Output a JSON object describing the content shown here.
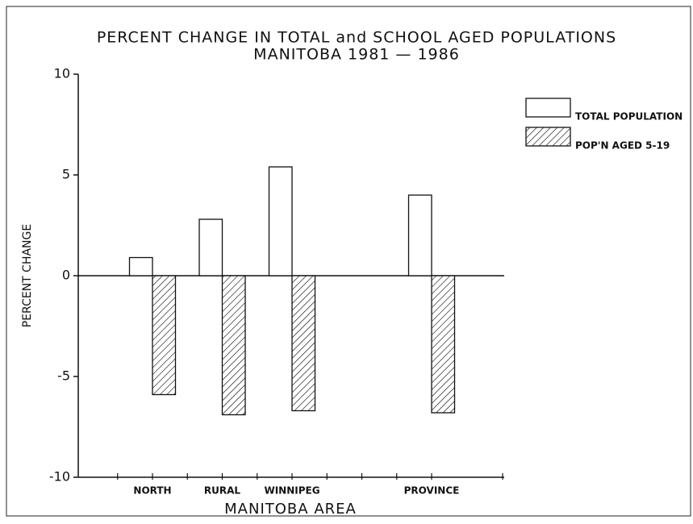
{
  "chart_data": {
    "type": "bar",
    "title": "PERCENT CHANGE IN TOTAL and SCHOOL AGED POPULATIONS",
    "subtitle": "MANITOBA  1981 — 1986",
    "x_label": "MANITOBA AREA",
    "y_label": "PERCENT CHANGE",
    "categories": [
      "NORTH",
      "RURAL",
      "WINNIPEG",
      null,
      "PROVINCE"
    ],
    "series": [
      {
        "name": "TOTAL POPULATION",
        "color": "#ffffff",
        "hatch": false,
        "values": [
          0.9,
          2.8,
          5.4,
          null,
          4.0
        ]
      },
      {
        "name": "POP'N AGED 5-19",
        "color": "#000000",
        "hatch": true,
        "values": [
          -5.9,
          -6.9,
          -6.7,
          null,
          -6.8
        ]
      }
    ],
    "ylim": [
      -10,
      10
    ],
    "yticks": [
      -10,
      -5,
      0,
      5,
      10
    ],
    "grid": false,
    "legend": "right"
  }
}
